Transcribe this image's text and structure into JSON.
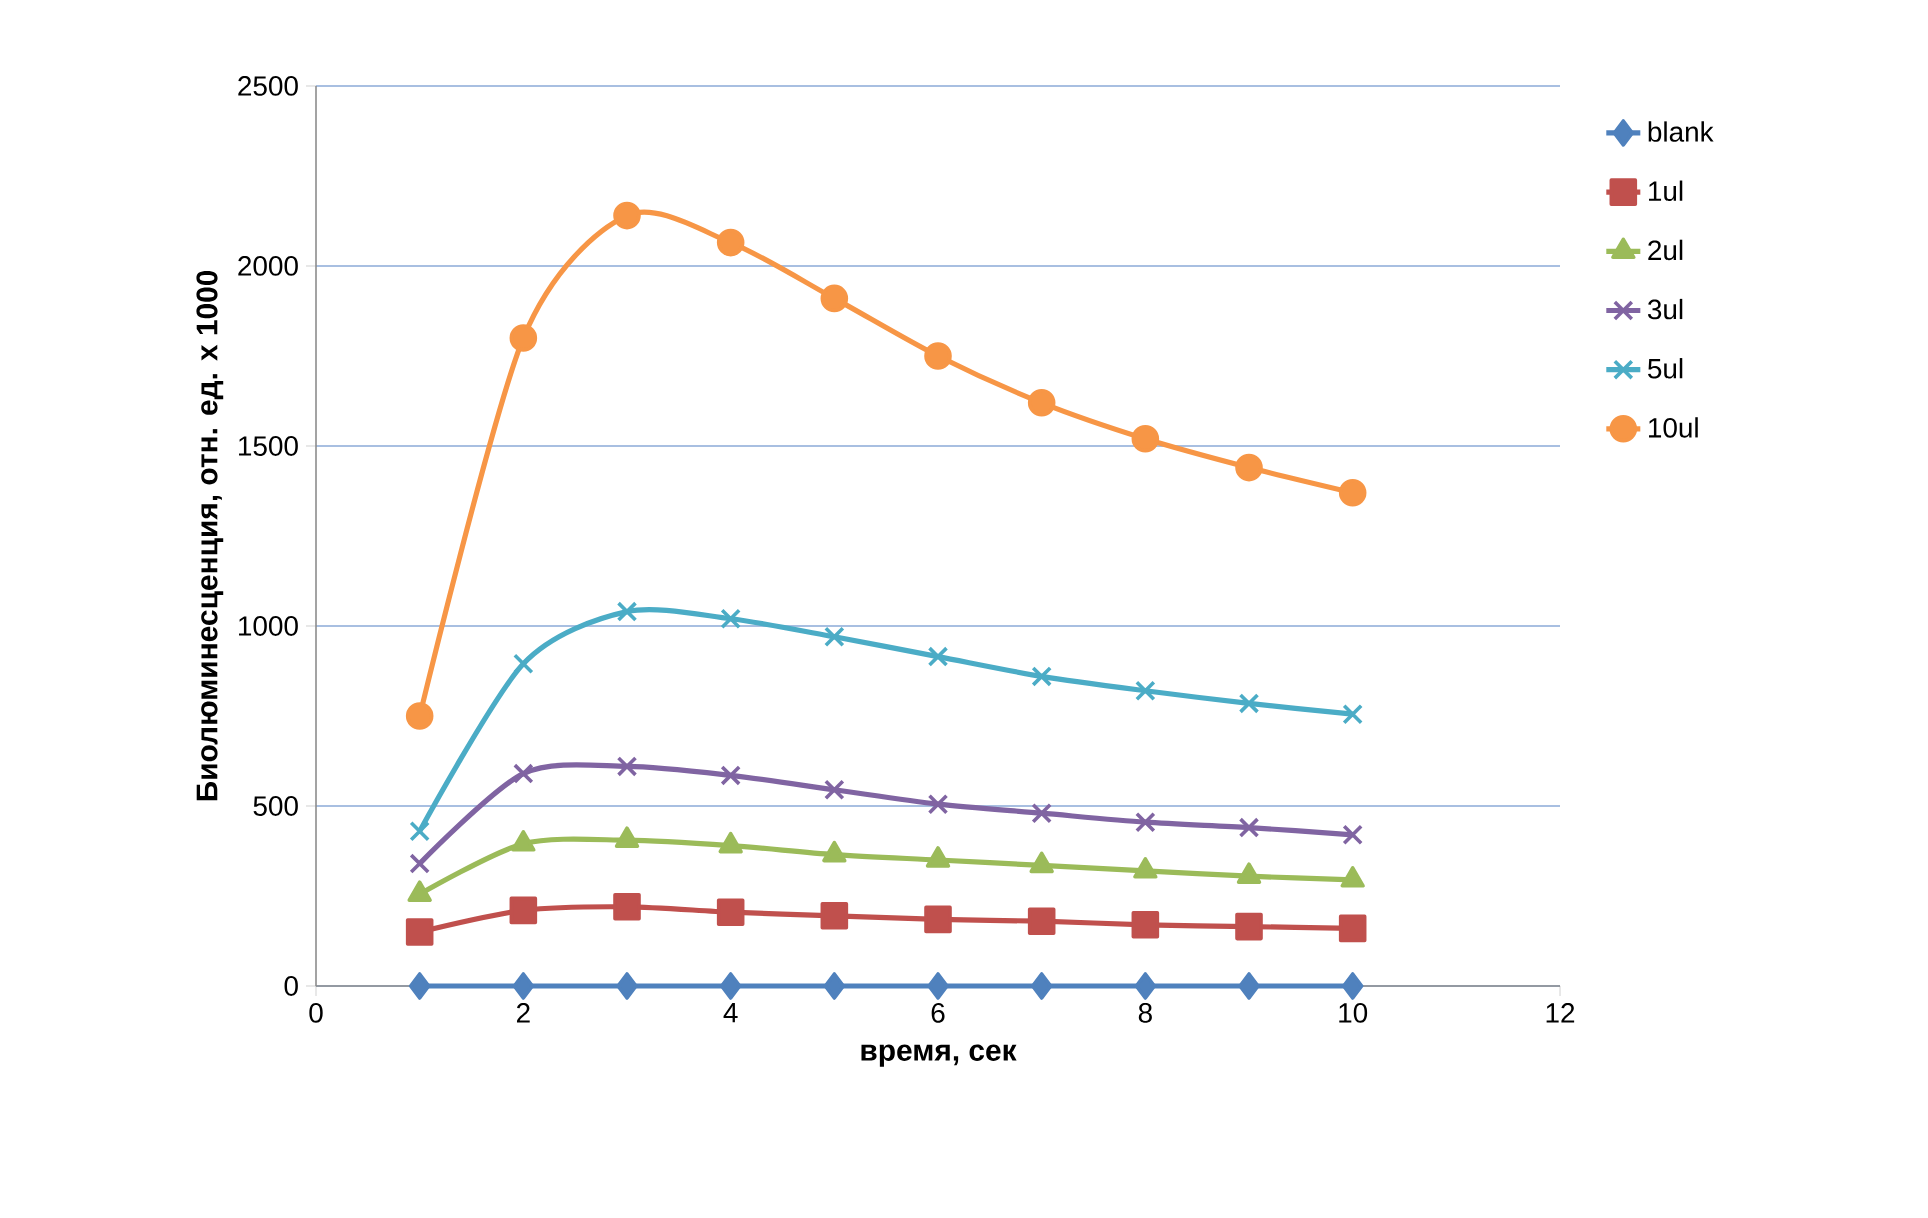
{
  "chart_data": {
    "type": "line",
    "xlabel": "время, сек",
    "ylabel": "Биолюминесценция, отн. ед. х 1000",
    "x": [
      1,
      2,
      3,
      4,
      5,
      6,
      7,
      8,
      9,
      10
    ],
    "xlim": [
      0,
      12
    ],
    "xticks": [
      0,
      2,
      4,
      6,
      8,
      10,
      12
    ],
    "ylim": [
      0,
      2500
    ],
    "yticks": [
      0,
      500,
      1000,
      1500,
      2000,
      2500
    ],
    "grid": "y",
    "legend": "right",
    "series": [
      {
        "name": "blank",
        "color": "#4f81bd",
        "marker": "diamond",
        "values": [
          0,
          0,
          0,
          0,
          0,
          0,
          0,
          0,
          0,
          0
        ]
      },
      {
        "name": "1ul",
        "color": "#c0504d",
        "marker": "square",
        "values": [
          150,
          210,
          220,
          205,
          195,
          185,
          180,
          170,
          165,
          160
        ]
      },
      {
        "name": "2ul",
        "color": "#9bbb59",
        "marker": "triangle",
        "values": [
          255,
          395,
          405,
          390,
          365,
          350,
          335,
          320,
          305,
          295
        ]
      },
      {
        "name": "3ul",
        "color": "#8064a2",
        "marker": "cross",
        "values": [
          340,
          590,
          610,
          585,
          545,
          505,
          480,
          455,
          440,
          420
        ]
      },
      {
        "name": "5ul",
        "color": "#4bacc6",
        "marker": "cross",
        "values": [
          430,
          895,
          1040,
          1020,
          970,
          915,
          860,
          820,
          785,
          755
        ]
      },
      {
        "name": "10ul",
        "color": "#f79646",
        "marker": "circle",
        "values": [
          750,
          1800,
          2140,
          2065,
          1910,
          1750,
          1620,
          1520,
          1440,
          1370
        ]
      }
    ]
  }
}
